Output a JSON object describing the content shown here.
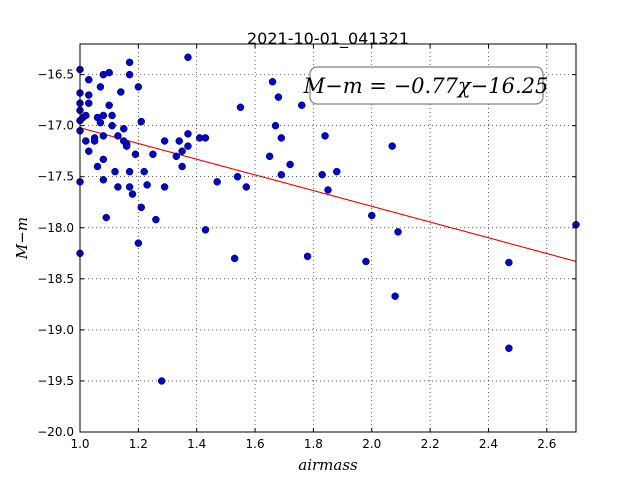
{
  "chart_data": {
    "type": "scatter",
    "title": "2021-10-01_041321",
    "xlabel": "airmass",
    "ylabel": "M−m",
    "xlim": [
      1.0,
      2.7
    ],
    "ylim": [
      -20.0,
      -16.2
    ],
    "y_inverted": true,
    "xticks": [
      1.0,
      1.2,
      1.4,
      1.6,
      1.8,
      2.0,
      2.2,
      2.4,
      2.6
    ],
    "xtick_labels": [
      "1.0",
      "1.2",
      "1.4",
      "1.6",
      "1.8",
      "2.0",
      "2.2",
      "2.4",
      "2.6"
    ],
    "yticks": [
      -16.5,
      -17.0,
      -17.5,
      -18.0,
      -18.5,
      -19.0,
      -19.5,
      -20.0
    ],
    "ytick_labels": [
      "−16.5",
      "−17.0",
      "−17.5",
      "−18.0",
      "−18.5",
      "−19.0",
      "−19.5",
      "−20.0"
    ],
    "grid": true,
    "annotation": "M−m = −0.77χ−16.25",
    "annotation_position": "top-right",
    "fit": {
      "slope": -0.77,
      "intercept": -16.25,
      "color": "#e00000"
    },
    "marker_color": "#0000cc",
    "points": [
      [
        1.0,
        -16.45
      ],
      [
        1.0,
        -16.68
      ],
      [
        1.0,
        -16.78
      ],
      [
        1.0,
        -16.85
      ],
      [
        1.0,
        -16.95
      ],
      [
        1.0,
        -17.05
      ],
      [
        1.0,
        -17.55
      ],
      [
        1.0,
        -18.25
      ],
      [
        1.01,
        -16.92
      ],
      [
        1.02,
        -16.9
      ],
      [
        1.02,
        -17.15
      ],
      [
        1.03,
        -17.25
      ],
      [
        1.03,
        -16.55
      ],
      [
        1.03,
        -16.7
      ],
      [
        1.03,
        -16.78
      ],
      [
        1.05,
        -17.12
      ],
      [
        1.05,
        -17.15
      ],
      [
        1.06,
        -16.92
      ],
      [
        1.06,
        -17.4
      ],
      [
        1.07,
        -16.62
      ],
      [
        1.07,
        -16.97
      ],
      [
        1.08,
        -16.5
      ],
      [
        1.08,
        -16.9
      ],
      [
        1.08,
        -17.1
      ],
      [
        1.08,
        -17.33
      ],
      [
        1.08,
        -17.53
      ],
      [
        1.09,
        -17.9
      ],
      [
        1.1,
        -16.48
      ],
      [
        1.1,
        -16.8
      ],
      [
        1.11,
        -16.9
      ],
      [
        1.11,
        -17.0
      ],
      [
        1.12,
        -17.45
      ],
      [
        1.13,
        -17.1
      ],
      [
        1.13,
        -17.6
      ],
      [
        1.14,
        -16.67
      ],
      [
        1.15,
        -17.03
      ],
      [
        1.15,
        -17.15
      ],
      [
        1.16,
        -17.18
      ],
      [
        1.16,
        -17.2
      ],
      [
        1.17,
        -16.38
      ],
      [
        1.17,
        -16.5
      ],
      [
        1.17,
        -17.45
      ],
      [
        1.17,
        -17.6
      ],
      [
        1.18,
        -17.67
      ],
      [
        1.19,
        -17.28
      ],
      [
        1.2,
        -16.62
      ],
      [
        1.2,
        -18.15
      ],
      [
        1.21,
        -17.8
      ],
      [
        1.21,
        -16.96
      ],
      [
        1.22,
        -17.45
      ],
      [
        1.23,
        -17.58
      ],
      [
        1.25,
        -17.28
      ],
      [
        1.26,
        -17.92
      ],
      [
        1.28,
        -19.5
      ],
      [
        1.29,
        -17.6
      ],
      [
        1.29,
        -17.15
      ],
      [
        1.33,
        -17.3
      ],
      [
        1.34,
        -17.15
      ],
      [
        1.35,
        -17.25
      ],
      [
        1.35,
        -17.4
      ],
      [
        1.37,
        -16.33
      ],
      [
        1.37,
        -17.08
      ],
      [
        1.37,
        -17.2
      ],
      [
        1.41,
        -17.12
      ],
      [
        1.43,
        -17.12
      ],
      [
        1.43,
        -18.02
      ],
      [
        1.47,
        -17.55
      ],
      [
        1.53,
        -18.3
      ],
      [
        1.54,
        -17.5
      ],
      [
        1.55,
        -16.82
      ],
      [
        1.57,
        -17.6
      ],
      [
        1.65,
        -17.3
      ],
      [
        1.66,
        -16.57
      ],
      [
        1.67,
        -17.0
      ],
      [
        1.68,
        -16.72
      ],
      [
        1.69,
        -17.12
      ],
      [
        1.69,
        -17.48
      ],
      [
        1.72,
        -17.38
      ],
      [
        1.76,
        -16.8
      ],
      [
        1.78,
        -18.28
      ],
      [
        1.83,
        -17.48
      ],
      [
        1.84,
        -17.1
      ],
      [
        1.85,
        -17.63
      ],
      [
        1.88,
        -17.45
      ],
      [
        1.98,
        -18.33
      ],
      [
        2.0,
        -17.88
      ],
      [
        2.07,
        -17.2
      ],
      [
        2.08,
        -18.67
      ],
      [
        2.09,
        -18.04
      ],
      [
        2.47,
        -18.34
      ],
      [
        2.47,
        -19.18
      ],
      [
        2.7,
        -17.97
      ]
    ]
  }
}
